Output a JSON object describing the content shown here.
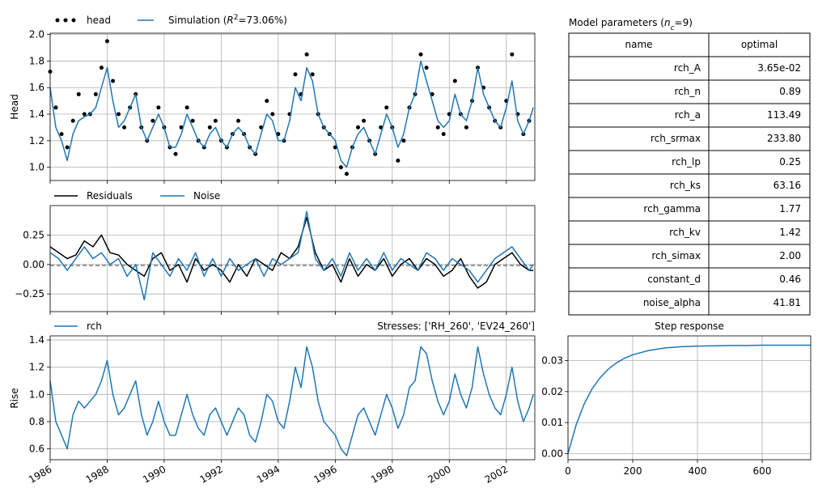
{
  "colors": {
    "series_blue": "#1f77b4",
    "observed": "#000000",
    "grid": "#b0b0b0"
  },
  "chart_data": [
    {
      "id": "head-panel",
      "type": "line",
      "ylabel": "Head",
      "ylim": [
        0.9,
        2.01
      ],
      "yticks": [
        "1.0",
        "1.2",
        "1.4",
        "1.6",
        "1.8",
        "2.0"
      ],
      "legend": [
        {
          "label": "head",
          "style": "dots",
          "color": "#000000"
        },
        {
          "label": "Simulation (R²=73.06%)",
          "label_prefix": "Simulation (",
          "label_r": "R",
          "label_sup": "2",
          "label_suffix": "=73.06%)",
          "style": "line",
          "color": "#1f77b4"
        }
      ],
      "grid": true,
      "series": [
        {
          "name": "head",
          "kind": "scatter",
          "color": "#000000",
          "x": [
            1986.0,
            1986.2,
            1986.4,
            1986.6,
            1986.8,
            1987.0,
            1987.2,
            1987.4,
            1987.6,
            1987.8,
            1988.0,
            1988.2,
            1988.4,
            1988.6,
            1988.8,
            1989.0,
            1989.2,
            1989.4,
            1989.6,
            1989.8,
            1990.0,
            1990.2,
            1990.4,
            1990.6,
            1990.8,
            1991.0,
            1991.2,
            1991.4,
            1991.6,
            1991.8,
            1992.0,
            1992.2,
            1992.4,
            1992.6,
            1992.8,
            1993.0,
            1993.2,
            1993.4,
            1993.6,
            1993.8,
            1994.0,
            1994.2,
            1994.4,
            1994.6,
            1994.8,
            1995.0,
            1995.2,
            1995.4,
            1995.6,
            1995.8,
            1996.0,
            1996.2,
            1996.4,
            1996.6,
            1996.8,
            1997.0,
            1997.2,
            1997.4,
            1997.6,
            1997.8,
            1998.0,
            1998.2,
            1998.4,
            1998.6,
            1998.8,
            1999.0,
            1999.2,
            1999.4,
            1999.6,
            1999.8,
            2000.0,
            2000.2,
            2000.4,
            2000.6,
            2000.8,
            2001.0,
            2001.2,
            2001.4,
            2001.6,
            2001.8,
            2002.0,
            2002.2,
            2002.4,
            2002.6,
            2002.8
          ],
          "y": [
            1.72,
            1.45,
            1.25,
            1.15,
            1.35,
            1.55,
            1.4,
            1.4,
            1.55,
            1.75,
            1.95,
            1.65,
            1.4,
            1.3,
            1.45,
            1.55,
            1.3,
            1.2,
            1.35,
            1.45,
            1.3,
            1.15,
            1.1,
            1.3,
            1.45,
            1.35,
            1.2,
            1.15,
            1.3,
            1.35,
            1.2,
            1.15,
            1.25,
            1.35,
            1.25,
            1.15,
            1.1,
            1.3,
            1.5,
            1.4,
            1.25,
            1.2,
            1.4,
            1.7,
            1.55,
            1.85,
            1.7,
            1.4,
            1.3,
            1.25,
            1.15,
            1.0,
            0.95,
            1.15,
            1.3,
            1.35,
            1.2,
            1.1,
            1.3,
            1.45,
            1.3,
            1.05,
            1.2,
            1.45,
            1.55,
            1.85,
            1.75,
            1.55,
            1.3,
            1.25,
            1.4,
            1.65,
            1.4,
            1.3,
            1.5,
            1.75,
            1.6,
            1.45,
            1.35,
            1.3,
            1.5,
            1.85,
            1.4,
            1.25,
            1.35
          ]
        },
        {
          "name": "Simulation",
          "kind": "line",
          "color": "#1f77b4",
          "x": [
            1986.0,
            1986.2,
            1986.4,
            1986.6,
            1986.8,
            1987.0,
            1987.2,
            1987.4,
            1987.6,
            1987.8,
            1988.0,
            1988.2,
            1988.4,
            1988.6,
            1988.8,
            1989.0,
            1989.2,
            1989.4,
            1989.6,
            1989.8,
            1990.0,
            1990.2,
            1990.4,
            1990.6,
            1990.8,
            1991.0,
            1991.2,
            1991.4,
            1991.6,
            1991.8,
            1992.0,
            1992.2,
            1992.4,
            1992.6,
            1992.8,
            1993.0,
            1993.2,
            1993.4,
            1993.6,
            1993.8,
            1994.0,
            1994.2,
            1994.4,
            1994.6,
            1994.8,
            1995.0,
            1995.2,
            1995.4,
            1995.6,
            1995.8,
            1996.0,
            1996.2,
            1996.4,
            1996.6,
            1996.8,
            1997.0,
            1997.2,
            1997.4,
            1997.6,
            1997.8,
            1998.0,
            1998.2,
            1998.4,
            1998.6,
            1998.8,
            1999.0,
            1999.2,
            1999.4,
            1999.6,
            1999.8,
            2000.0,
            2000.2,
            2000.4,
            2000.6,
            2000.8,
            2001.0,
            2001.2,
            2001.4,
            2001.6,
            2001.8,
            2002.0,
            2002.2,
            2002.4,
            2002.6,
            2002.8,
            2002.95
          ],
          "y": [
            1.6,
            1.3,
            1.2,
            1.05,
            1.25,
            1.35,
            1.38,
            1.4,
            1.45,
            1.6,
            1.75,
            1.5,
            1.3,
            1.35,
            1.45,
            1.55,
            1.3,
            1.2,
            1.3,
            1.4,
            1.3,
            1.15,
            1.15,
            1.25,
            1.4,
            1.3,
            1.2,
            1.15,
            1.25,
            1.3,
            1.2,
            1.15,
            1.25,
            1.3,
            1.25,
            1.15,
            1.1,
            1.25,
            1.4,
            1.35,
            1.2,
            1.2,
            1.35,
            1.6,
            1.5,
            1.75,
            1.65,
            1.4,
            1.3,
            1.25,
            1.2,
            1.05,
            1.0,
            1.15,
            1.25,
            1.3,
            1.2,
            1.1,
            1.25,
            1.4,
            1.3,
            1.15,
            1.25,
            1.45,
            1.55,
            1.8,
            1.65,
            1.5,
            1.35,
            1.3,
            1.35,
            1.55,
            1.4,
            1.35,
            1.5,
            1.75,
            1.55,
            1.45,
            1.35,
            1.3,
            1.45,
            1.65,
            1.35,
            1.25,
            1.35,
            1.45
          ]
        }
      ]
    },
    {
      "id": "residuals-panel",
      "type": "line",
      "ylim": [
        -0.4,
        0.5
      ],
      "yticks": [
        "0.25",
        "0.00",
        "−0.25"
      ],
      "legend": [
        {
          "label": "Residuals",
          "color": "#000000"
        },
        {
          "label": "Noise",
          "color": "#1f77b4"
        }
      ],
      "grid": true,
      "series": [
        {
          "name": "Residuals",
          "color": "#000000",
          "x": [
            1986.0,
            1986.3,
            1986.6,
            1986.9,
            1987.2,
            1987.5,
            1987.8,
            1988.1,
            1988.4,
            1988.7,
            1989.0,
            1989.3,
            1989.6,
            1989.9,
            1990.2,
            1990.5,
            1990.8,
            1991.1,
            1991.4,
            1991.7,
            1992.0,
            1992.3,
            1992.6,
            1992.9,
            1993.2,
            1993.5,
            1993.8,
            1994.1,
            1994.4,
            1994.7,
            1995.0,
            1995.3,
            1995.6,
            1995.9,
            1996.2,
            1996.5,
            1996.8,
            1997.1,
            1997.4,
            1997.7,
            1998.0,
            1998.3,
            1998.6,
            1998.9,
            1999.2,
            1999.5,
            1999.8,
            2000.1,
            2000.4,
            2000.7,
            2001.0,
            2001.3,
            2001.6,
            2001.9,
            2002.2,
            2002.5,
            2002.8,
            2002.95
          ],
          "y": [
            0.15,
            0.1,
            0.05,
            0.08,
            0.2,
            0.15,
            0.25,
            0.1,
            0.08,
            0.0,
            -0.05,
            -0.1,
            0.05,
            0.1,
            -0.05,
            0.0,
            -0.15,
            0.05,
            -0.05,
            0.0,
            -0.05,
            -0.15,
            0.0,
            -0.1,
            0.05,
            0.0,
            -0.05,
            0.1,
            0.05,
            0.15,
            0.4,
            0.1,
            -0.05,
            0.0,
            -0.15,
            0.05,
            -0.1,
            0.0,
            -0.05,
            0.05,
            -0.1,
            0.0,
            0.05,
            -0.05,
            0.05,
            0.0,
            -0.1,
            -0.05,
            0.05,
            -0.1,
            -0.2,
            -0.15,
            0.0,
            0.05,
            0.1,
            0.0,
            -0.05,
            -0.05
          ]
        },
        {
          "name": "Noise",
          "color": "#1f77b4",
          "x": [
            1986.0,
            1986.3,
            1986.6,
            1986.9,
            1987.2,
            1987.5,
            1987.8,
            1988.1,
            1988.4,
            1988.7,
            1989.0,
            1989.3,
            1989.6,
            1989.9,
            1990.2,
            1990.5,
            1990.8,
            1991.1,
            1991.4,
            1991.7,
            1992.0,
            1992.3,
            1992.6,
            1992.9,
            1993.2,
            1993.5,
            1993.8,
            1994.1,
            1994.4,
            1994.7,
            1995.0,
            1995.3,
            1995.6,
            1995.9,
            1996.2,
            1996.5,
            1996.8,
            1997.1,
            1997.4,
            1997.7,
            1998.0,
            1998.3,
            1998.6,
            1998.9,
            1999.2,
            1999.5,
            1999.8,
            2000.1,
            2000.4,
            2000.7,
            2001.0,
            2001.3,
            2001.6,
            2001.9,
            2002.2,
            2002.5,
            2002.8,
            2002.95
          ],
          "y": [
            0.1,
            0.05,
            -0.05,
            0.05,
            0.15,
            0.05,
            0.1,
            0.0,
            0.05,
            -0.1,
            0.0,
            -0.3,
            0.1,
            0.0,
            -0.1,
            0.05,
            -0.05,
            0.1,
            -0.1,
            0.05,
            -0.1,
            0.05,
            -0.05,
            0.0,
            0.05,
            -0.1,
            0.05,
            0.0,
            0.05,
            0.1,
            0.45,
            0.05,
            -0.05,
            0.05,
            -0.1,
            0.1,
            -0.05,
            0.05,
            -0.05,
            0.1,
            -0.05,
            0.05,
            0.0,
            -0.05,
            0.1,
            0.05,
            -0.05,
            0.05,
            0.0,
            -0.05,
            -0.15,
            -0.05,
            0.05,
            0.1,
            0.15,
            0.05,
            -0.05,
            0.0
          ]
        }
      ]
    },
    {
      "id": "rch-panel",
      "type": "line",
      "ylabel": "Rise",
      "ylim": [
        0.52,
        1.43
      ],
      "yticks": [
        "1.4",
        "1.2",
        "1.0",
        "0.8",
        "0.6"
      ],
      "title_right": "Stresses: ['RH_260', 'EV24_260']",
      "legend": [
        {
          "label": "rch",
          "color": "#1f77b4"
        }
      ],
      "grid": true,
      "xticks": [
        "1986",
        "1988",
        "1990",
        "1992",
        "1994",
        "1996",
        "1998",
        "2000",
        "2002"
      ],
      "xlim": [
        1986.0,
        2003.0
      ],
      "series": [
        {
          "name": "rch",
          "color": "#1f77b4",
          "x": [
            1986.0,
            1986.2,
            1986.4,
            1986.6,
            1986.8,
            1987.0,
            1987.2,
            1987.4,
            1987.6,
            1987.8,
            1988.0,
            1988.2,
            1988.4,
            1988.6,
            1988.8,
            1989.0,
            1989.2,
            1989.4,
            1989.6,
            1989.8,
            1990.0,
            1990.2,
            1990.4,
            1990.6,
            1990.8,
            1991.0,
            1991.2,
            1991.4,
            1991.6,
            1991.8,
            1992.0,
            1992.2,
            1992.4,
            1992.6,
            1992.8,
            1993.0,
            1993.2,
            1993.4,
            1993.6,
            1993.8,
            1994.0,
            1994.2,
            1994.4,
            1994.6,
            1994.8,
            1995.0,
            1995.2,
            1995.4,
            1995.6,
            1995.8,
            1996.0,
            1996.2,
            1996.4,
            1996.6,
            1996.8,
            1997.0,
            1997.2,
            1997.4,
            1997.6,
            1997.8,
            1998.0,
            1998.2,
            1998.4,
            1998.6,
            1998.8,
            1999.0,
            1999.2,
            1999.4,
            1999.6,
            1999.8,
            2000.0,
            2000.2,
            2000.4,
            2000.6,
            2000.8,
            2001.0,
            2001.2,
            2001.4,
            2001.6,
            2001.8,
            2002.0,
            2002.2,
            2002.4,
            2002.6,
            2002.8,
            2002.95
          ],
          "y": [
            1.1,
            0.8,
            0.7,
            0.6,
            0.85,
            0.95,
            0.9,
            0.95,
            1.0,
            1.1,
            1.25,
            1.0,
            0.85,
            0.9,
            1.0,
            1.1,
            0.85,
            0.7,
            0.8,
            0.95,
            0.8,
            0.7,
            0.7,
            0.85,
            1.0,
            0.85,
            0.75,
            0.7,
            0.85,
            0.9,
            0.8,
            0.7,
            0.8,
            0.9,
            0.85,
            0.7,
            0.65,
            0.8,
            1.0,
            0.95,
            0.8,
            0.75,
            0.95,
            1.2,
            1.05,
            1.35,
            1.2,
            0.95,
            0.8,
            0.75,
            0.7,
            0.6,
            0.55,
            0.7,
            0.85,
            0.9,
            0.8,
            0.7,
            0.85,
            1.0,
            0.9,
            0.75,
            0.85,
            1.05,
            1.1,
            1.35,
            1.3,
            1.1,
            0.95,
            0.85,
            0.95,
            1.15,
            1.0,
            0.9,
            1.05,
            1.35,
            1.15,
            1.0,
            0.9,
            0.85,
            1.0,
            1.2,
            0.95,
            0.8,
            0.9,
            1.0
          ]
        }
      ]
    },
    {
      "id": "step-response-panel",
      "type": "line",
      "title": "Step response",
      "xlim": [
        0,
        750
      ],
      "ylim": [
        -0.002,
        0.038
      ],
      "xticks": [
        "0",
        "200",
        "400",
        "600"
      ],
      "yticks": [
        "0.03",
        "0.02",
        "0.01",
        "0.00"
      ],
      "grid": true,
      "series": [
        {
          "color": "#1f77b4",
          "x": [
            0,
            25,
            50,
            75,
            100,
            125,
            150,
            175,
            200,
            250,
            300,
            350,
            400,
            450,
            500,
            550,
            600,
            650,
            700,
            750
          ],
          "y": [
            0.0,
            0.0092,
            0.016,
            0.021,
            0.0246,
            0.0273,
            0.0293,
            0.0308,
            0.0319,
            0.0333,
            0.0341,
            0.0345,
            0.0347,
            0.0348,
            0.0349,
            0.0349,
            0.035,
            0.035,
            0.035,
            0.035
          ]
        }
      ]
    },
    {
      "id": "parameters-table",
      "type": "table",
      "title_prefix": "Model parameters (",
      "title_n": "n",
      "title_sub": "c",
      "title_suffix": "=9)",
      "columns": [
        "name",
        "optimal"
      ],
      "rows": [
        [
          "rch_A",
          "3.65e-02"
        ],
        [
          "rch_n",
          "0.89"
        ],
        [
          "rch_a",
          "113.49"
        ],
        [
          "rch_srmax",
          "233.80"
        ],
        [
          "rch_lp",
          "0.25"
        ],
        [
          "rch_ks",
          "63.16"
        ],
        [
          "rch_gamma",
          "1.77"
        ],
        [
          "rch_kv",
          "1.42"
        ],
        [
          "rch_simax",
          "2.00"
        ],
        [
          "constant_d",
          "0.46"
        ],
        [
          "noise_alpha",
          "41.81"
        ]
      ]
    }
  ]
}
